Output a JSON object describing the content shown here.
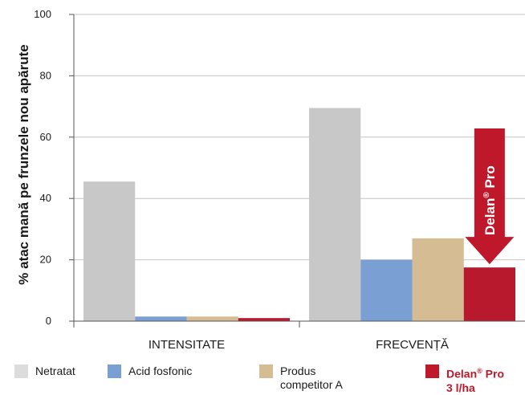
{
  "chart_data": {
    "type": "bar",
    "categories": [
      "INTENSITATE",
      "FRECVENȚĂ"
    ],
    "ylabel": "% atac mană pe frunzele nou apărute",
    "ylim": [
      0,
      100
    ],
    "yticks": [
      0,
      20,
      40,
      60,
      80,
      100
    ],
    "grid": true,
    "series": [
      {
        "name": "Netratat",
        "color": "#c8c8c8",
        "values": [
          45.5,
          69.5
        ]
      },
      {
        "name": "Acid fosfonic",
        "color": "#7a9fd3",
        "values": [
          1.5,
          20
        ]
      },
      {
        "name": "Produs competitor A",
        "color": "#d5bc93",
        "values": [
          1.5,
          27
        ]
      },
      {
        "name": "Delan® Pro 3 l/ha",
        "color": "#b8192d",
        "values": [
          1,
          17.5
        ]
      }
    ],
    "annotation": {
      "text": "Delan",
      "sup": "®",
      "suffix": " Pro",
      "color": "#c0182b"
    }
  },
  "legend": [
    {
      "line1": "Netratat",
      "line2": "",
      "color": "#dcdcdc",
      "bold": false
    },
    {
      "line1": "Acid fosfonic",
      "line2": "",
      "color": "#7a9fd3",
      "bold": false
    },
    {
      "line1": "Produs",
      "line2": "competitor A",
      "color": "#d5bc93",
      "bold": false
    },
    {
      "line1": "Delan",
      "sup": "®",
      "line1b": " Pro",
      "line2": "3 l/ha",
      "color": "#c0182b",
      "bold": true
    }
  ]
}
